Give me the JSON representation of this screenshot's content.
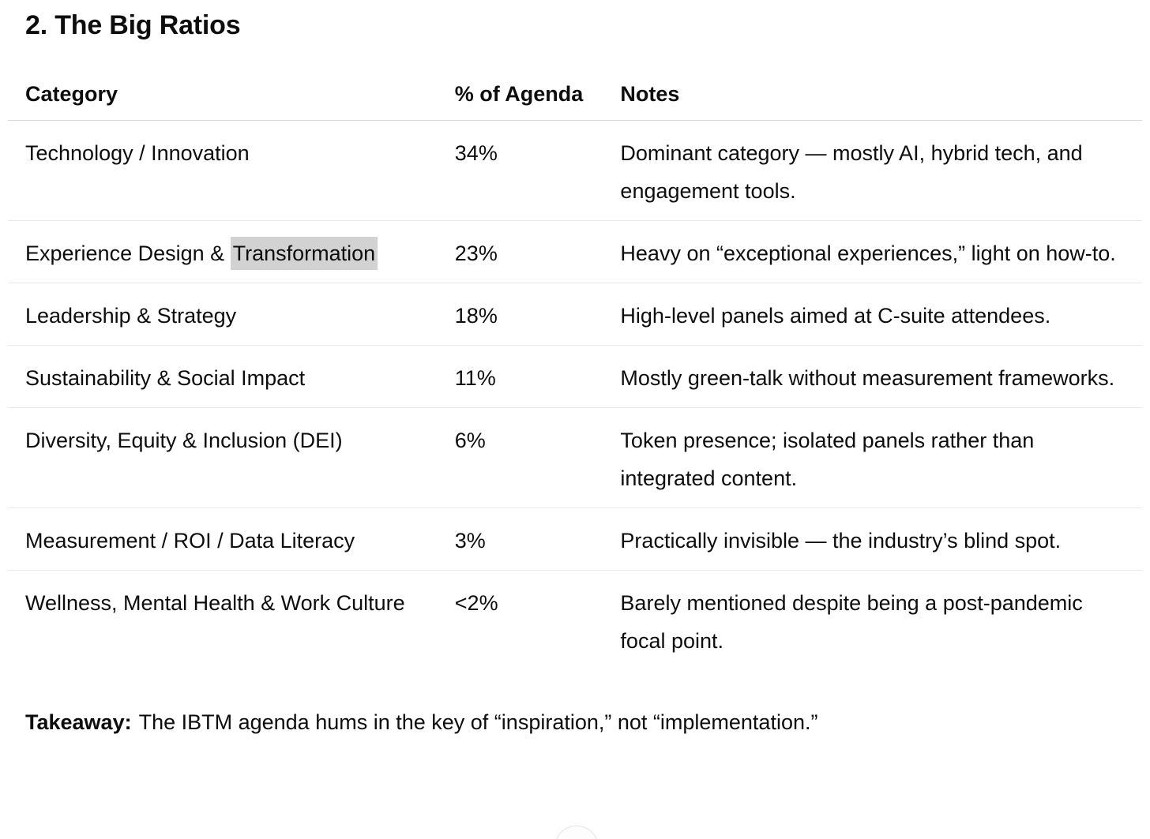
{
  "page": {
    "heading": "2. The Big Ratios",
    "takeaway_label": "Takeaway:",
    "takeaway_text": "The IBTM agenda hums in the key of “inspiration,” not “implementation.”"
  },
  "table": {
    "columns": [
      "Category",
      "% of Agenda",
      "Notes"
    ],
    "rows": [
      {
        "cat": "Technology / Innovation",
        "hl": "",
        "pct": "34%",
        "note": "Dominant category — mostly AI, hybrid tech, and engagement tools."
      },
      {
        "cat": "Experience Design & ",
        "hl": "Transformation",
        "pct": "23%",
        "note": "Heavy on “exceptional experiences,” light on how-to."
      },
      {
        "cat": "Leadership & Strategy",
        "hl": "",
        "pct": "18%",
        "note": "High-level panels aimed at C-suite attendees."
      },
      {
        "cat": "Sustainability & Social Impact",
        "hl": "",
        "pct": "11%",
        "note": "Mostly green-talk without measurement frameworks."
      },
      {
        "cat": "Diversity, Equity & Inclusion (DEI)",
        "hl": "",
        "pct": "6%",
        "note": "Token presence; isolated panels rather than integrated content."
      },
      {
        "cat": "Measurement / ROI / Data Literacy",
        "hl": "",
        "pct": "3%",
        "note": "Practically invisible — the industry’s blind spot."
      },
      {
        "cat": "Wellness, Mental Health & Work Culture",
        "hl": "",
        "pct": "<2%",
        "note": "Barely mentioned despite being a post-pandemic focal point."
      }
    ]
  },
  "scroll_button": {
    "icon": "down-arrow",
    "glyph": "↓"
  },
  "colors": {
    "text": "#0d0d0d",
    "highlight": "#d2d2d2",
    "header_border": "#d9d9d9",
    "row_border": "#e9e9e9",
    "button_border": "#e5e5e5",
    "background": "#ffffff"
  }
}
